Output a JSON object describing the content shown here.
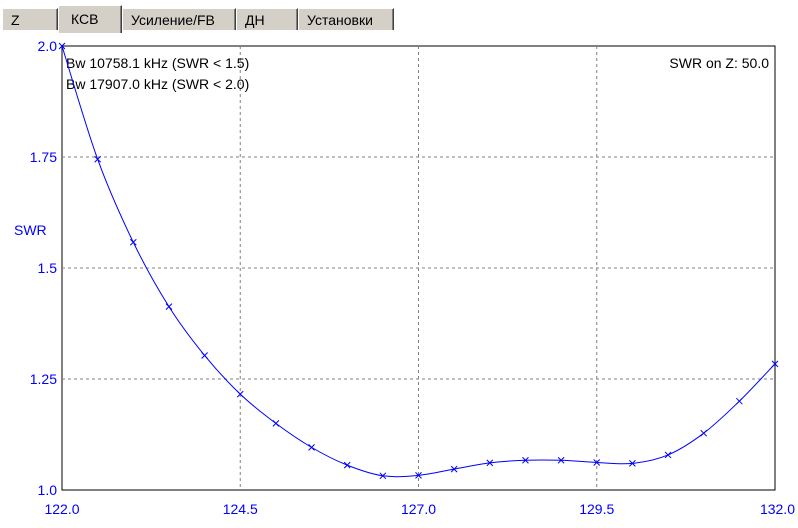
{
  "tabs": [
    {
      "label": "Z",
      "active": false
    },
    {
      "label": "КСВ",
      "active": true
    },
    {
      "label": "Усиление/FB",
      "active": false
    },
    {
      "label": "ДН",
      "active": false
    },
    {
      "label": "Установки",
      "active": false
    }
  ],
  "chart_data": {
    "type": "line",
    "title": "",
    "xlabel": "",
    "ylabel": "SWR",
    "xlim": [
      122.0,
      132.0
    ],
    "ylim": [
      1.0,
      2.0
    ],
    "x_ticks": [
      "122.0",
      "124.5",
      "127.0",
      "129.5",
      "132.0"
    ],
    "y_ticks": [
      "1.0",
      "1.25",
      "1.5",
      "1.75",
      "2.0"
    ],
    "grid": true,
    "annotations": {
      "bw1": "Bw 10758.1 kHz (SWR < 1.5)",
      "bw2": "Bw 17907.0 kHz (SWR < 2.0)",
      "swr_on_z": "SWR on Z: 50.0"
    },
    "series": [
      {
        "color": "#0000ff",
        "marker": "x",
        "x": [
          122.0,
          122.5,
          123.0,
          123.5,
          124.0,
          124.5,
          125.0,
          125.5,
          126.0,
          126.5,
          127.0,
          127.5,
          128.0,
          128.5,
          129.0,
          129.5,
          130.0,
          130.5,
          131.0,
          131.5,
          132.0
        ],
        "y": [
          2.0,
          1.745,
          1.558,
          1.413,
          1.303,
          1.216,
          1.15,
          1.096,
          1.056,
          1.032,
          1.033,
          1.047,
          1.061,
          1.067,
          1.067,
          1.062,
          1.06,
          1.079,
          1.128,
          1.2,
          1.284
        ]
      }
    ]
  }
}
